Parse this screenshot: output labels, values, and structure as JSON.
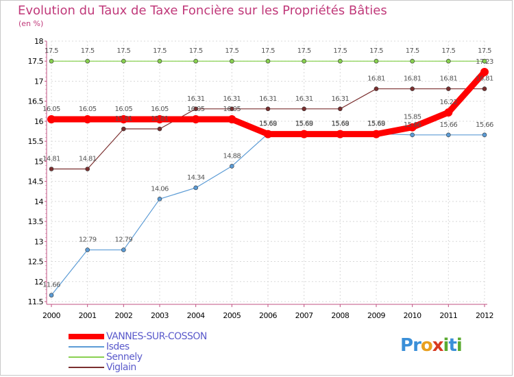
{
  "title": "Evolution du Taux de Taxe Foncière sur les Propriétés Bâties",
  "subtitle": "(en %)",
  "logo": {
    "letters": [
      "P",
      "r",
      "o",
      "x",
      "i",
      "t",
      "i"
    ],
    "colors": [
      "#3a8fd8",
      "#3a8fd8",
      "#e8a020",
      "#d83a20",
      "#5aaa30",
      "#3a8fd8",
      "#5aaa30"
    ]
  },
  "chart_data": {
    "type": "line",
    "title": "Evolution du Taux de Taxe Foncière sur les Propriétés Bâties",
    "ylabel": "(en %)",
    "xlabel": "",
    "ylim": [
      11.5,
      18
    ],
    "yticks": [
      "11.5",
      "12",
      "12.5",
      "13",
      "13.5",
      "14",
      "14.5",
      "15",
      "15.5",
      "16",
      "16.5",
      "17",
      "17.5",
      "18"
    ],
    "x": [
      "2000",
      "2001",
      "2002",
      "2003",
      "2004",
      "2005",
      "2006",
      "2007",
      "2008",
      "2009",
      "2010",
      "2011",
      "2012"
    ],
    "series": [
      {
        "name": "VANNES-SUR-COSSON",
        "color": "#ff0000",
        "values": [
          16.05,
          16.05,
          16.05,
          16.05,
          16.05,
          16.05,
          15.68,
          15.68,
          15.68,
          15.68,
          15.85,
          16.22,
          17.23
        ],
        "labels": [
          "16.05",
          "16.05",
          "16.05",
          "16.05",
          "16.05",
          "16.05",
          "15.68",
          "15.68",
          "15.68",
          "15.68",
          "15.85",
          "16.22",
          "17.23"
        ]
      },
      {
        "name": "Isdes",
        "color": "#5b9bd5",
        "values": [
          11.66,
          12.79,
          12.79,
          14.06,
          14.34,
          14.88,
          15.69,
          15.69,
          15.69,
          15.69,
          15.66,
          15.66,
          15.66
        ],
        "labels": [
          "11.66",
          "12.79",
          "12.79",
          "14.06",
          "14.34",
          "14.88",
          "15.69",
          "15.69",
          "15.69",
          "15.69",
          "15.66",
          "15.66",
          "15.66"
        ]
      },
      {
        "name": "Sennely",
        "color": "#88d050",
        "values": [
          17.5,
          17.5,
          17.5,
          17.5,
          17.5,
          17.5,
          17.5,
          17.5,
          17.5,
          17.5,
          17.5,
          17.5,
          17.5
        ],
        "labels": [
          "17.5",
          "17.5",
          "17.5",
          "17.5",
          "17.5",
          "17.5",
          "17.5",
          "17.5",
          "17.5",
          "17.5",
          "17.5",
          "17.5",
          "17.5"
        ]
      },
      {
        "name": "Viglain",
        "color": "#7a2e2e",
        "values": [
          14.81,
          14.81,
          15.81,
          15.81,
          16.31,
          16.31,
          16.31,
          16.31,
          16.31,
          16.81,
          16.81,
          16.81,
          16.81
        ],
        "labels": [
          "14.81",
          "14.81",
          "15.81",
          "15.81",
          "16.31",
          "16.31",
          "16.31",
          "16.31",
          "16.31",
          "16.81",
          "16.81",
          "16.81",
          "16.81"
        ]
      }
    ],
    "legend": "bottom-left"
  }
}
